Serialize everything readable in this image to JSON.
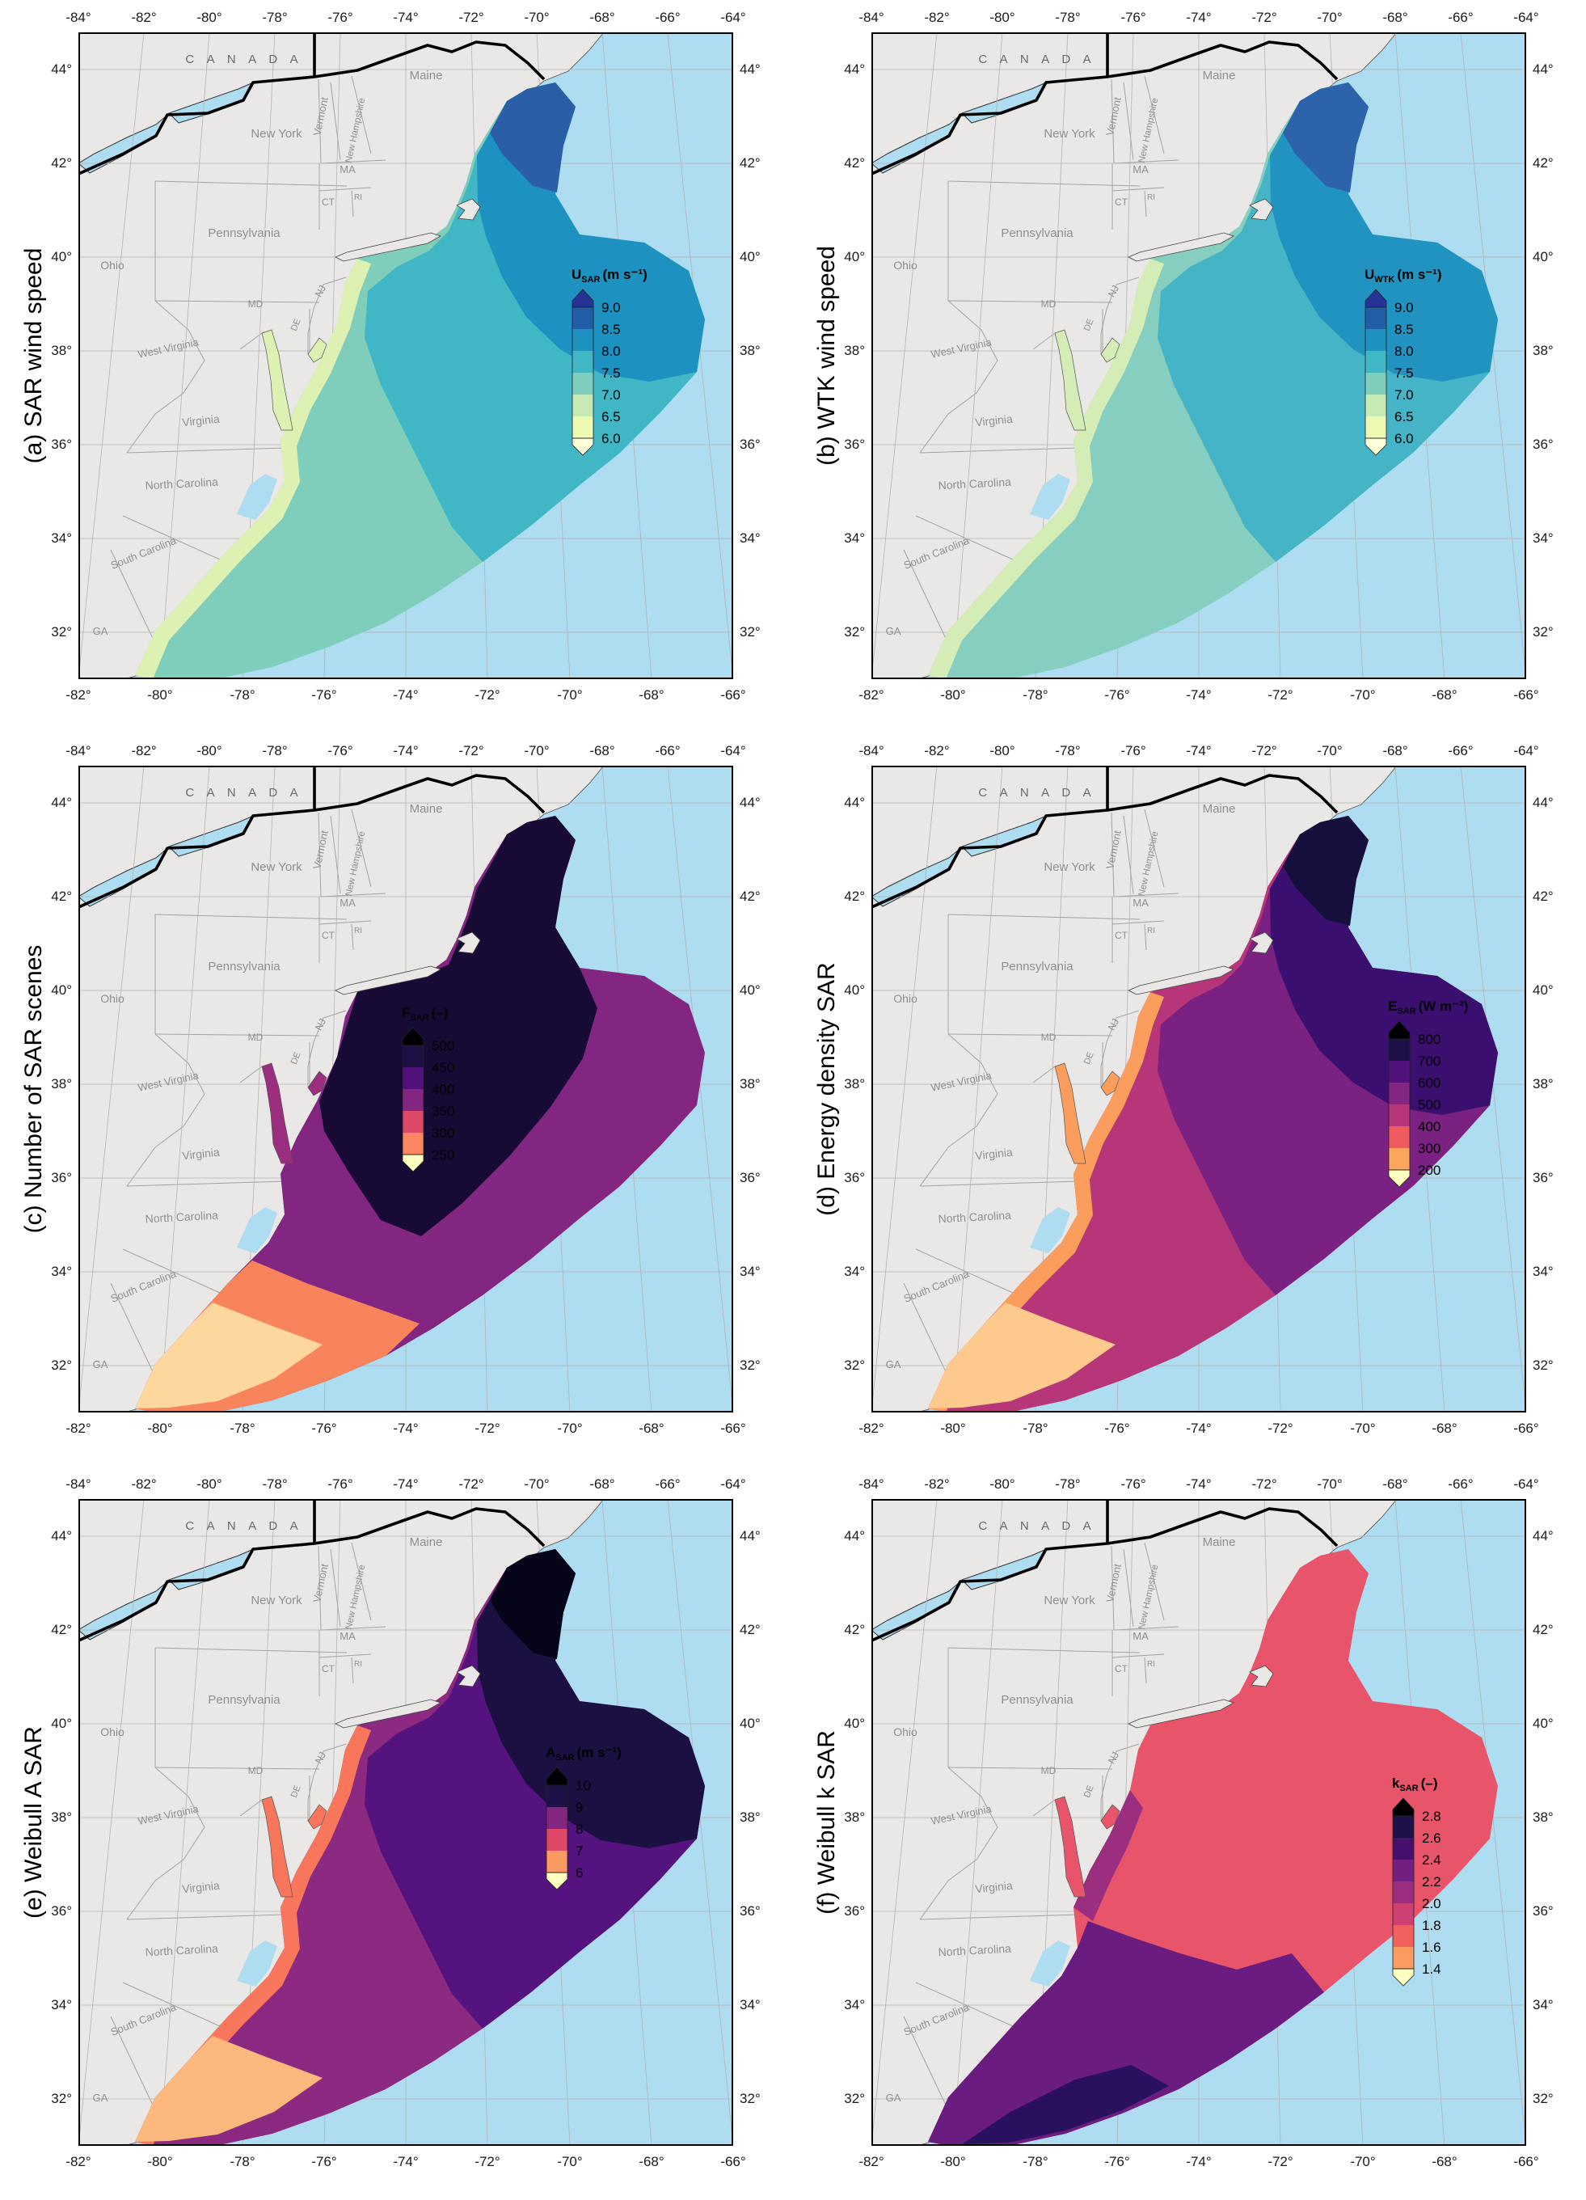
{
  "axes": {
    "top_lon": [
      "-84°",
      "-82°",
      "-80°",
      "-78°",
      "-76°",
      "-74°",
      "-72°",
      "-70°",
      "-68°",
      "-66°",
      "-64°"
    ],
    "bottom_lon": [
      "-82°",
      "-80°",
      "-78°",
      "-76°",
      "-74°",
      "-72°",
      "-70°",
      "-68°",
      "-66°"
    ],
    "lat_left": [
      "44°",
      "42°",
      "40°",
      "38°",
      "36°",
      "34°",
      "32°"
    ],
    "lat_right": [
      "44°",
      "42°",
      "40°",
      "38°",
      "36°",
      "34°",
      "32°"
    ]
  },
  "map": {
    "canada": "C A N A D A",
    "states": [
      "Maine",
      "Vermont",
      "New Hampshire",
      "New York",
      "MA",
      "CT",
      "RI",
      "Pennsylvania",
      "NJ",
      "MD",
      "DE",
      "Ohio",
      "West Virginia",
      "Virginia",
      "North Carolina",
      "South Carolina",
      "GA"
    ],
    "colors": {
      "ocean": "#aedcf0",
      "land": "#e9e8e6",
      "grid": "#b3b3b3",
      "state_border": "#a3a3a3",
      "canada_border": "#000000",
      "state_text": "#8f8f8f",
      "canada_text": "#6a6a6a"
    }
  },
  "panels": [
    {
      "id": "a",
      "title": "(a) SAR wind speed",
      "colorbar": {
        "sym": "U",
        "sub": "SAR",
        "unit": "(m s⁻¹)",
        "ticks": [
          "9.0",
          "8.5",
          "8.0",
          "7.5",
          "7.0",
          "6.5",
          "6.0"
        ],
        "arrow_top": "#253494",
        "bands": [
          "#225ea8",
          "#1d91c0",
          "#41b6c4",
          "#7fcdbb",
          "#c7e9b4",
          "#edf8b1"
        ],
        "arrow_bottom": "#ffffd9"
      },
      "region_layers": [
        [
          "outer",
          "#7fcdbb"
        ],
        [
          "mid",
          "#41b6c4"
        ],
        [
          "core",
          "#1d91c0"
        ],
        [
          "core2",
          "#2a5fa8"
        ],
        [
          "coast",
          "#dcf1b2"
        ]
      ],
      "bay": "#dcf1b2"
    },
    {
      "id": "b",
      "title": "(b) WTK wind speed",
      "colorbar": {
        "sym": "U",
        "sub": "WTK",
        "unit": "(m s⁻¹)",
        "ticks": [
          "9.0",
          "8.5",
          "8.0",
          "7.5",
          "7.0",
          "6.5",
          "6.0"
        ],
        "arrow_top": "#253494",
        "bands": [
          "#225ea8",
          "#1d91c0",
          "#41b6c4",
          "#7fcdbb",
          "#c7e9b4",
          "#edf8b1"
        ],
        "arrow_bottom": "#ffffd9"
      },
      "region_layers": [
        [
          "outer",
          "#86cfc0"
        ],
        [
          "mid",
          "#44b4c6"
        ],
        [
          "core",
          "#2193c1"
        ],
        [
          "core2",
          "#2c63ab"
        ],
        [
          "coast",
          "#d4ecb5"
        ]
      ],
      "bay": "#d4ecb5"
    },
    {
      "id": "c",
      "title": "(c) Number of SAR scenes",
      "colorbar": {
        "sym": "F",
        "sub": "SAR",
        "unit": "(–)",
        "ticks": [
          "500",
          "450",
          "400",
          "350",
          "300",
          "250"
        ],
        "arrow_top": "#000004",
        "bands": [
          "#1c1044",
          "#51127c",
          "#822681",
          "#de4968",
          "#fb8861"
        ],
        "arrow_bottom": "#fcfdbf"
      },
      "region_layers": [
        [
          "outer",
          "#822681"
        ],
        [
          "ccore",
          "#170b35"
        ],
        [
          "south",
          "#f8845c"
        ],
        [
          "south2",
          "#fdd79e"
        ]
      ],
      "bay": "#9c2e7f"
    },
    {
      "id": "d",
      "title": "(d) Energy density SAR",
      "colorbar": {
        "sym": "E",
        "sub": "SAR",
        "unit": "(W m⁻²)",
        "ticks": [
          "800",
          "700",
          "600",
          "500",
          "400",
          "300",
          "200"
        ],
        "arrow_top": "#000004",
        "bands": [
          "#1d1147",
          "#51127c",
          "#822681",
          "#b63679",
          "#ee5b5e",
          "#fca55d"
        ],
        "arrow_bottom": "#fcfdbf"
      },
      "region_layers": [
        [
          "outer",
          "#b63679"
        ],
        [
          "mid",
          "#7b2182"
        ],
        [
          "core",
          "#3b0f70"
        ],
        [
          "core2",
          "#160f3c"
        ],
        [
          "coast",
          "#fb9d5d"
        ],
        [
          "south2",
          "#fdc98c"
        ]
      ],
      "bay": "#fb9d5d"
    },
    {
      "id": "e",
      "title": "(e) Weibull A SAR",
      "colorbar": {
        "sym": "A",
        "sub": "SAR",
        "unit": "(m s⁻¹)",
        "ticks": [
          "10",
          "9",
          "8",
          "7",
          "6"
        ],
        "arrow_top": "#000004",
        "bands": [
          "#1d1147",
          "#822681",
          "#de4968",
          "#fb9b61"
        ],
        "arrow_bottom": "#fcfdbf"
      },
      "region_layers": [
        [
          "outer",
          "#8c2981"
        ],
        [
          "mid",
          "#54137e"
        ],
        [
          "core",
          "#1c1043"
        ],
        [
          "core2",
          "#060418"
        ],
        [
          "coast",
          "#f8765c"
        ],
        [
          "south2",
          "#fdb97d"
        ]
      ],
      "bay": "#f8765c"
    },
    {
      "id": "f",
      "title": "(f) Weibull k SAR",
      "colorbar": {
        "sym": "k",
        "sub": "SAR",
        "unit": "(–)",
        "ticks": [
          "2.8",
          "2.6",
          "2.4",
          "2.2",
          "2.0",
          "1.8",
          "1.6",
          "1.4"
        ],
        "arrow_top": "#000004",
        "bands": [
          "#1d1147",
          "#45106e",
          "#721f81",
          "#9c2e7f",
          "#cd4071",
          "#f1605d",
          "#fb9b61"
        ],
        "arrow_bottom": "#fcfdbf"
      },
      "region_layers": [
        [
          "outer",
          "#e8556a"
        ],
        [
          "fsouth",
          "#6a1c81"
        ],
        [
          "fdark",
          "#29115f"
        ],
        [
          "fpatch",
          "#9c2e7f"
        ]
      ],
      "bay": "#e8556a"
    }
  ]
}
